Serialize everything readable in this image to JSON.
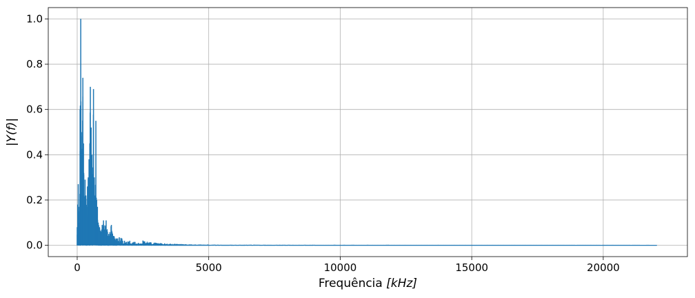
{
  "chart_data": {
    "type": "line",
    "title": "",
    "xlabel_main": "Frequência ",
    "xlabel_unit": "[kHz]",
    "ylabel": "|Y(f)|",
    "xlim": [
      -1100,
      23200
    ],
    "ylim": [
      -0.05,
      1.05
    ],
    "xticks": [
      0,
      5000,
      10000,
      15000,
      20000
    ],
    "xtick_labels": [
      "0",
      "5000",
      "10000",
      "15000",
      "20000"
    ],
    "yticks": [
      0.0,
      0.2,
      0.4,
      0.6,
      0.8,
      1.0
    ],
    "ytick_labels": [
      "0.0",
      "0.2",
      "0.4",
      "0.6",
      "0.8",
      "1.0"
    ],
    "grid": true,
    "series": [
      {
        "color": "#1f77b4",
        "peaks": [
          {
            "x": 0,
            "y": 0.08
          },
          {
            "x": 20,
            "y": 0.18
          },
          {
            "x": 40,
            "y": 0.27
          },
          {
            "x": 60,
            "y": 0.1
          },
          {
            "x": 80,
            "y": 0.17
          },
          {
            "x": 110,
            "y": 0.6
          },
          {
            "x": 135,
            "y": 1.0
          },
          {
            "x": 160,
            "y": 0.5
          },
          {
            "x": 190,
            "y": 0.35
          },
          {
            "x": 215,
            "y": 0.74
          },
          {
            "x": 240,
            "y": 0.45
          },
          {
            "x": 270,
            "y": 0.2
          },
          {
            "x": 300,
            "y": 0.29
          },
          {
            "x": 330,
            "y": 0.22
          },
          {
            "x": 360,
            "y": 0.17
          },
          {
            "x": 390,
            "y": 0.26
          },
          {
            "x": 420,
            "y": 0.3
          },
          {
            "x": 450,
            "y": 0.38
          },
          {
            "x": 480,
            "y": 0.45
          },
          {
            "x": 500,
            "y": 0.7
          },
          {
            "x": 530,
            "y": 0.52
          },
          {
            "x": 560,
            "y": 0.4
          },
          {
            "x": 590,
            "y": 0.3
          },
          {
            "x": 620,
            "y": 0.69
          },
          {
            "x": 650,
            "y": 0.3
          },
          {
            "x": 680,
            "y": 0.22
          },
          {
            "x": 710,
            "y": 0.55
          },
          {
            "x": 740,
            "y": 0.2
          },
          {
            "x": 770,
            "y": 0.17
          },
          {
            "x": 800,
            "y": 0.1
          },
          {
            "x": 850,
            "y": 0.08
          },
          {
            "x": 900,
            "y": 0.06
          },
          {
            "x": 950,
            "y": 0.09
          },
          {
            "x": 1000,
            "y": 0.11
          },
          {
            "x": 1050,
            "y": 0.07
          },
          {
            "x": 1100,
            "y": 0.11
          },
          {
            "x": 1150,
            "y": 0.06
          },
          {
            "x": 1200,
            "y": 0.05
          },
          {
            "x": 1300,
            "y": 0.09
          },
          {
            "x": 1400,
            "y": 0.04
          },
          {
            "x": 1500,
            "y": 0.03
          },
          {
            "x": 1600,
            "y": 0.035
          },
          {
            "x": 1700,
            "y": 0.03
          },
          {
            "x": 1800,
            "y": 0.02
          },
          {
            "x": 2000,
            "y": 0.02
          },
          {
            "x": 2200,
            "y": 0.015
          },
          {
            "x": 2500,
            "y": 0.02
          },
          {
            "x": 2800,
            "y": 0.012
          },
          {
            "x": 3000,
            "y": 0.01
          },
          {
            "x": 3500,
            "y": 0.006
          },
          {
            "x": 4000,
            "y": 0.004
          },
          {
            "x": 4500,
            "y": 0.002
          },
          {
            "x": 6000,
            "y": 0.001
          },
          {
            "x": 10000,
            "y": 0.0005
          },
          {
            "x": 15000,
            "y": 0.0003
          },
          {
            "x": 20000,
            "y": 0.0002
          },
          {
            "x": 22050,
            "y": 0.0
          }
        ]
      }
    ]
  }
}
